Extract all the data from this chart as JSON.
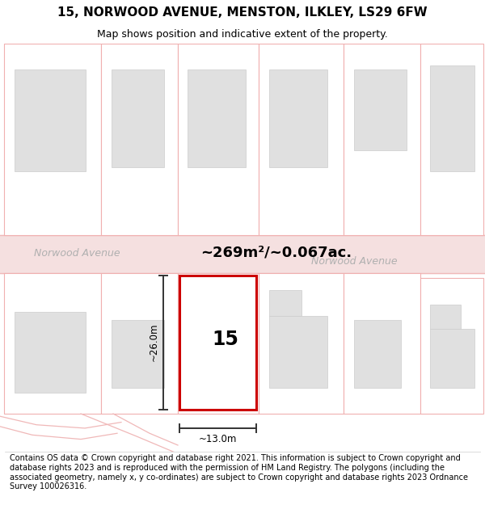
{
  "title": "15, NORWOOD AVENUE, MENSTON, ILKLEY, LS29 6FW",
  "subtitle": "Map shows position and indicative extent of the property.",
  "area_label": "~269m²/~0.067ac.",
  "number_label": "15",
  "width_label": "~13.0m",
  "height_label": "~26.0m",
  "street_label_left": "Norwood Avenue",
  "street_label_right": "Norwood Avenue",
  "footer": "Contains OS data © Crown copyright and database right 2021. This information is subject to Crown copyright and database rights 2023 and is reproduced with the permission of HM Land Registry. The polygons (including the associated geometry, namely x, y co-ordinates) are subject to Crown copyright and database rights 2023 Ordnance Survey 100026316.",
  "bg_color": "#ffffff",
  "map_bg": "#ffffff",
  "road_color": "#f0b8b8",
  "building_outline_color": "#f0b0b0",
  "building_fill_color": "#e0e0e0",
  "property_outline_color": "#cc0000",
  "property_fill_color": "#ffffff",
  "street_fill_color": "#f5e0e0",
  "dim_line_color": "#333333",
  "title_fontsize": 11,
  "subtitle_fontsize": 9,
  "footer_fontsize": 7.0
}
